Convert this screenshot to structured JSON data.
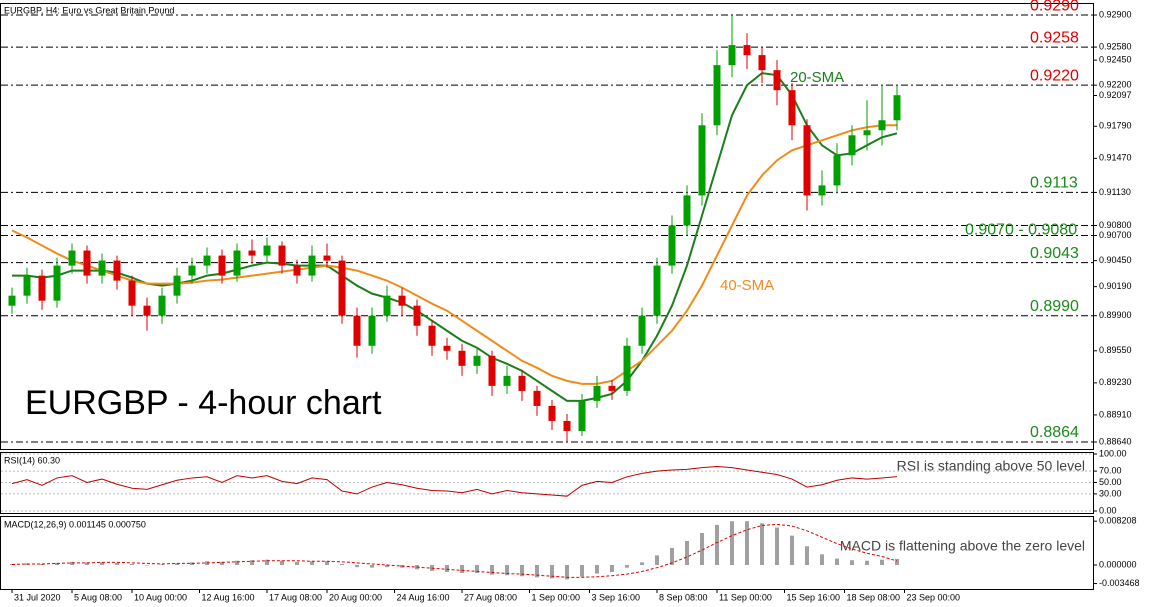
{
  "chart_data": [
    {
      "type": "candlestick",
      "title": "EURGBP, H4: Euro vs Great Britain Pound",
      "annotation": "EURGBP - 4-hour chart",
      "up_color": "#00a000",
      "down_color": "#e00000",
      "candles": [
        [
          0.9,
          0.9018,
          0.8992,
          0.901
        ],
        [
          0.901,
          0.9038,
          0.9002,
          0.903
        ],
        [
          0.903,
          0.9036,
          0.8996,
          0.9005
        ],
        [
          0.9005,
          0.9048,
          0.8998,
          0.904
        ],
        [
          0.904,
          0.9062,
          0.9032,
          0.9055
        ],
        [
          0.9055,
          0.906,
          0.9022,
          0.903
        ],
        [
          0.903,
          0.9052,
          0.9022,
          0.9045
        ],
        [
          0.9045,
          0.905,
          0.9016,
          0.9025
        ],
        [
          0.9025,
          0.903,
          0.899,
          0.9
        ],
        [
          0.9,
          0.9008,
          0.8975,
          0.899
        ],
        [
          0.899,
          0.9018,
          0.8982,
          0.901
        ],
        [
          0.901,
          0.9038,
          0.9002,
          0.903
        ],
        [
          0.903,
          0.9048,
          0.9022,
          0.904
        ],
        [
          0.904,
          0.9058,
          0.9032,
          0.905
        ],
        [
          0.905,
          0.9056,
          0.9022,
          0.903
        ],
        [
          0.903,
          0.9062,
          0.9024,
          0.9055
        ],
        [
          0.9055,
          0.9066,
          0.9042,
          0.905
        ],
        [
          0.905,
          0.9068,
          0.9044,
          0.906
        ],
        [
          0.906,
          0.9064,
          0.9032,
          0.904
        ],
        [
          0.904,
          0.9046,
          0.9022,
          0.903
        ],
        [
          0.903,
          0.906,
          0.9024,
          0.905
        ],
        [
          0.905,
          0.9062,
          0.9038,
          0.9045
        ],
        [
          0.9045,
          0.905,
          0.8982,
          0.899
        ],
        [
          0.899,
          0.8998,
          0.8948,
          0.896
        ],
        [
          0.896,
          0.8998,
          0.8952,
          0.899
        ],
        [
          0.899,
          0.902,
          0.8984,
          0.901
        ],
        [
          0.901,
          0.9018,
          0.899,
          0.9
        ],
        [
          0.9,
          0.9006,
          0.897,
          0.898
        ],
        [
          0.898,
          0.8986,
          0.895,
          0.896
        ],
        [
          0.896,
          0.8968,
          0.8946,
          0.8955
        ],
        [
          0.8955,
          0.8962,
          0.893,
          0.894
        ],
        [
          0.894,
          0.8958,
          0.8932,
          0.895
        ],
        [
          0.895,
          0.8955,
          0.891,
          0.892
        ],
        [
          0.892,
          0.894,
          0.8912,
          0.893
        ],
        [
          0.893,
          0.8936,
          0.8905,
          0.8915
        ],
        [
          0.8915,
          0.892,
          0.889,
          0.89
        ],
        [
          0.89,
          0.8906,
          0.8876,
          0.8885
        ],
        [
          0.8885,
          0.8892,
          0.8864,
          0.8875
        ],
        [
          0.8875,
          0.8912,
          0.887,
          0.8905
        ],
        [
          0.8905,
          0.893,
          0.8898,
          0.892
        ],
        [
          0.892,
          0.8926,
          0.8906,
          0.8915
        ],
        [
          0.8915,
          0.8968,
          0.891,
          0.896
        ],
        [
          0.896,
          0.8998,
          0.8952,
          0.899
        ],
        [
          0.899,
          0.9048,
          0.8982,
          0.904
        ],
        [
          0.904,
          0.909,
          0.9032,
          0.908
        ],
        [
          0.908,
          0.912,
          0.907,
          0.911
        ],
        [
          0.911,
          0.9192,
          0.91,
          0.918
        ],
        [
          0.918,
          0.9255,
          0.917,
          0.924
        ],
        [
          0.924,
          0.929,
          0.9228,
          0.926
        ],
        [
          0.926,
          0.9272,
          0.9236,
          0.925
        ],
        [
          0.925,
          0.9258,
          0.9222,
          0.9235
        ],
        [
          0.9235,
          0.9245,
          0.92,
          0.9215
        ],
        [
          0.9215,
          0.9222,
          0.9165,
          0.918
        ],
        [
          0.918,
          0.9186,
          0.9095,
          0.911
        ],
        [
          0.911,
          0.9135,
          0.91,
          0.912
        ],
        [
          0.912,
          0.9162,
          0.9112,
          0.915
        ],
        [
          0.915,
          0.918,
          0.914,
          0.917
        ],
        [
          0.917,
          0.9205,
          0.9155,
          0.9175
        ],
        [
          0.9175,
          0.922,
          0.916,
          0.9185
        ],
        [
          0.9185,
          0.922,
          0.9175,
          0.921
        ]
      ],
      "series": [
        {
          "name": "20-SMA",
          "color": "#1a7f1a",
          "values": [
            0.903,
            0.903,
            0.9028,
            0.903,
            0.9035,
            0.9035,
            0.9035,
            0.9033,
            0.9028,
            0.9022,
            0.902,
            0.9022,
            0.9025,
            0.903,
            0.9032,
            0.9036,
            0.904,
            0.9043,
            0.9042,
            0.904,
            0.904,
            0.904,
            0.903,
            0.902,
            0.9012,
            0.9008,
            0.9003,
            0.8995,
            0.8985,
            0.8975,
            0.8965,
            0.8958,
            0.8948,
            0.8942,
            0.8935,
            0.8925,
            0.8915,
            0.8905,
            0.8905,
            0.8908,
            0.8912,
            0.8925,
            0.8945,
            0.897,
            0.9,
            0.904,
            0.909,
            0.914,
            0.919,
            0.922,
            0.9232,
            0.923,
            0.921,
            0.918,
            0.916,
            0.915,
            0.9152,
            0.916,
            0.9168,
            0.9172
          ]
        },
        {
          "name": "40-SMA",
          "color": "#f08c1a",
          "values": [
            0.9075,
            0.9068,
            0.906,
            0.9052,
            0.9045,
            0.904,
            0.9035,
            0.903,
            0.9025,
            0.9022,
            0.9022,
            0.9022,
            0.9023,
            0.9025,
            0.9026,
            0.9028,
            0.903,
            0.9032,
            0.9034,
            0.9036,
            0.9038,
            0.904,
            0.9038,
            0.9035,
            0.903,
            0.9025,
            0.9018,
            0.901,
            0.9002,
            0.8995,
            0.8985,
            0.8975,
            0.8965,
            0.8955,
            0.8945,
            0.8938,
            0.893,
            0.8925,
            0.8922,
            0.8922,
            0.8925,
            0.8935,
            0.8945,
            0.896,
            0.8975,
            0.8995,
            0.902,
            0.905,
            0.908,
            0.911,
            0.913,
            0.9145,
            0.9155,
            0.916,
            0.9165,
            0.917,
            0.9175,
            0.9178,
            0.918,
            0.918
          ]
        }
      ],
      "levels": [
        {
          "label": "0.9290",
          "values": [
            0.929
          ],
          "color": "#e00000"
        },
        {
          "label": "0.9258",
          "values": [
            0.9258
          ],
          "color": "#e00000"
        },
        {
          "label": "0.9220",
          "values": [
            0.922
          ],
          "color": "#e00000"
        },
        {
          "label": "0.9113",
          "values": [
            0.9113
          ],
          "color": "#1a8a1a"
        },
        {
          "label": "0.9070 - 0.9080",
          "values": [
            0.907,
            0.908
          ],
          "color": "#1a8a1a"
        },
        {
          "label": "0.9043",
          "values": [
            0.9043
          ],
          "color": "#1a8a1a"
        },
        {
          "label": "0.8990",
          "values": [
            0.899
          ],
          "color": "#1a8a1a"
        },
        {
          "label": "0.8864",
          "values": [
            0.8864
          ],
          "color": "#1a8a1a"
        }
      ],
      "ylim": [
        0.8858,
        0.93
      ],
      "yticks": [
        {
          "value": 0.929,
          "label": "0.92900"
        },
        {
          "value": 0.9258,
          "label": "0.92580"
        },
        {
          "value": 0.9245,
          "label": "0.92450"
        },
        {
          "value": 0.922,
          "label": "0.92200"
        },
        {
          "value": 0.92097,
          "label": "0.92097"
        },
        {
          "value": 0.9179,
          "label": "0.91790"
        },
        {
          "value": 0.9147,
          "label": "0.91470"
        },
        {
          "value": 0.9113,
          "label": "0.91130"
        },
        {
          "value": 0.908,
          "label": "0.90800"
        },
        {
          "value": 0.907,
          "label": "0.90700"
        },
        {
          "value": 0.9045,
          "label": "0.90450"
        },
        {
          "value": 0.9019,
          "label": "0.90190"
        },
        {
          "value": 0.899,
          "label": "0.89900"
        },
        {
          "value": 0.8955,
          "label": "0.89550"
        },
        {
          "value": 0.8923,
          "label": "0.89230"
        },
        {
          "value": 0.8891,
          "label": "0.88910"
        },
        {
          "value": 0.8864,
          "label": "0.88640"
        }
      ]
    },
    {
      "type": "line",
      "title": "RSI(14) 60.30",
      "annotation": "RSI is standing above 50 level",
      "color": "#c00000",
      "values": [
        48,
        55,
        45,
        58,
        62,
        50,
        56,
        47,
        40,
        38,
        46,
        54,
        58,
        60,
        50,
        62,
        58,
        62,
        52,
        48,
        58,
        55,
        35,
        30,
        42,
        50,
        46,
        40,
        36,
        35,
        32,
        38,
        30,
        36,
        32,
        30,
        28,
        26,
        45,
        52,
        50,
        60,
        66,
        70,
        72,
        73,
        76,
        78,
        76,
        72,
        68,
        64,
        56,
        42,
        46,
        54,
        58,
        56,
        58,
        60.3
      ],
      "ylim": [
        0,
        100
      ],
      "yticks": [
        {
          "value": 100,
          "label": "100.00"
        },
        {
          "value": 70,
          "label": "70.00"
        },
        {
          "value": 50,
          "label": "50.00"
        },
        {
          "value": 30,
          "label": "30.00"
        },
        {
          "value": 0,
          "label": "0.00"
        }
      ]
    },
    {
      "type": "macd",
      "title": "MACD(12,26,9) 0.001145 0.000750",
      "annotation": "MACD is flattening above the zero level",
      "color": "#a0a0a0",
      "signal_color": "#e00000",
      "values": [
        0.0002,
        0.0003,
        0.0002,
        0.0004,
        0.0006,
        0.0005,
        0.0005,
        0.0004,
        0.0002,
        0.0,
        0.0001,
        0.0003,
        0.0005,
        0.0007,
        0.0006,
        0.0008,
        0.0009,
        0.001,
        0.0008,
        0.0006,
        0.0007,
        0.0007,
        0.0002,
        -0.0004,
        -0.0005,
        -0.0004,
        -0.0005,
        -0.0008,
        -0.0011,
        -0.0013,
        -0.0015,
        -0.0015,
        -0.0018,
        -0.0019,
        -0.0021,
        -0.0023,
        -0.0025,
        -0.0027,
        -0.0022,
        -0.0016,
        -0.0013,
        -0.0005,
        0.0005,
        0.0018,
        0.0032,
        0.0045,
        0.006,
        0.0075,
        0.0082,
        0.0082,
        0.0078,
        0.007,
        0.0055,
        0.0035,
        0.002,
        0.0012,
        0.0009,
        0.0008,
        0.001,
        0.001145
      ],
      "signal": [
        0.0001,
        0.0002,
        0.0002,
        0.0003,
        0.0004,
        0.0004,
        0.0005,
        0.0005,
        0.0004,
        0.0003,
        0.0002,
        0.0003,
        0.0003,
        0.0004,
        0.0005,
        0.0006,
        0.0007,
        0.0008,
        0.0008,
        0.0008,
        0.0007,
        0.0007,
        0.0006,
        0.0004,
        0.0002,
        0.0,
        -0.0002,
        -0.0004,
        -0.0006,
        -0.0008,
        -0.001,
        -0.0012,
        -0.0014,
        -0.0016,
        -0.0017,
        -0.0019,
        -0.0021,
        -0.0023,
        -0.0023,
        -0.0022,
        -0.002,
        -0.0017,
        -0.0012,
        -0.0005,
        0.0004,
        0.0015,
        0.0028,
        0.0042,
        0.0055,
        0.0066,
        0.0074,
        0.0076,
        0.0073,
        0.0064,
        0.0052,
        0.004,
        0.003,
        0.0022,
        0.0016,
        0.00075
      ],
      "ylim": [
        -0.0043,
        0.0088
      ],
      "yticks": [
        {
          "value": 0.008208,
          "label": "0.008208"
        },
        {
          "value": 0,
          "label": "0.000000"
        },
        {
          "value": -0.003468,
          "label": "-0.003468"
        }
      ],
      "xticks": [
        {
          "value": 0,
          "label": "31 Jul 2020"
        },
        {
          "value": 4,
          "label": "5 Aug 08:00"
        },
        {
          "value": 8,
          "label": "10 Aug 00:00"
        },
        {
          "value": 12.5,
          "label": "12 Aug 16:00"
        },
        {
          "value": 17,
          "label": "17 Aug 08:00"
        },
        {
          "value": 21,
          "label": "20 Aug 00:00"
        },
        {
          "value": 25.5,
          "label": "24 Aug 16:00"
        },
        {
          "value": 30,
          "label": "27 Aug 08:00"
        },
        {
          "value": 34.5,
          "label": "1 Sep 00:00"
        },
        {
          "value": 38.5,
          "label": "3 Sep 16:00"
        },
        {
          "value": 43,
          "label": "8 Sep 08:00"
        },
        {
          "value": 47,
          "label": "11 Sep 00:00"
        },
        {
          "value": 51.5,
          "label": "15 Sep 16:00"
        },
        {
          "value": 55.5,
          "label": "18 Sep 08:00"
        },
        {
          "value": 59.5,
          "label": "23 Sep 00:00"
        }
      ]
    }
  ]
}
